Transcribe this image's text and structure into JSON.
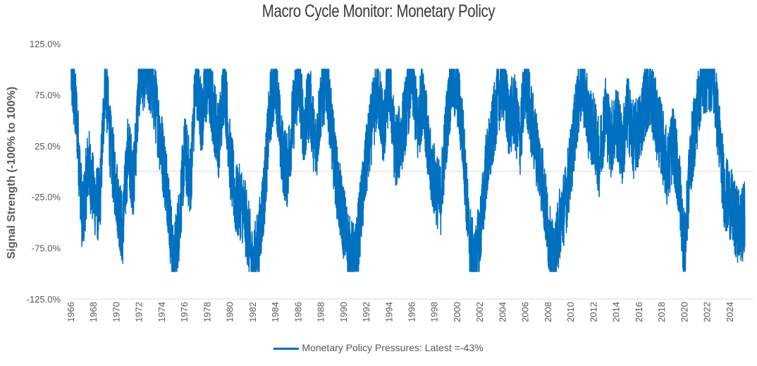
{
  "chart_data": {
    "type": "line",
    "title": "Macro Cycle Monitor: Monetary Policy",
    "xlabel": "",
    "ylabel": "Signal Strength (-100% to 100%)",
    "ylim": [
      -1.25,
      1.25
    ],
    "xlim": [
      1966,
      2026
    ],
    "yticks": [
      -1.25,
      -0.75,
      -0.25,
      0.25,
      0.75,
      1.25
    ],
    "ytick_labels": [
      "-125.0%",
      "-75.0%",
      "-25.0%",
      "25.0%",
      "75.0%",
      "125.0%"
    ],
    "xtick_labels": [
      "1966",
      "1968",
      "1970",
      "1972",
      "1974",
      "1976",
      "1978",
      "1980",
      "1982",
      "1984",
      "1986",
      "1988",
      "1990",
      "1992",
      "1994",
      "1996",
      "1998",
      "2000",
      "2002",
      "2004",
      "2006",
      "2008",
      "2010",
      "2012",
      "2014",
      "2016",
      "2018",
      "2020",
      "2022",
      "2024"
    ],
    "legend_position": "bottom",
    "grid": false,
    "series": [
      {
        "name": "Monetary Policy Pressures: Latest =-43%",
        "color": "#0070c0",
        "x": [
          1966.0,
          1966.5,
          1967.0,
          1967.5,
          1968.0,
          1968.5,
          1969.0,
          1969.5,
          1970.0,
          1970.5,
          1971.0,
          1971.5,
          1972.0,
          1972.5,
          1973.0,
          1973.5,
          1974.0,
          1974.5,
          1975.0,
          1975.5,
          1976.0,
          1976.5,
          1977.0,
          1977.5,
          1978.0,
          1978.5,
          1979.0,
          1979.5,
          1980.0,
          1980.5,
          1981.0,
          1981.5,
          1982.0,
          1982.5,
          1983.0,
          1983.5,
          1984.0,
          1984.5,
          1985.0,
          1985.5,
          1986.0,
          1986.5,
          1987.0,
          1987.5,
          1988.0,
          1988.5,
          1989.0,
          1989.5,
          1990.0,
          1990.5,
          1991.0,
          1991.5,
          1992.0,
          1992.5,
          1993.0,
          1993.5,
          1994.0,
          1994.5,
          1995.0,
          1995.5,
          1996.0,
          1996.5,
          1997.0,
          1997.5,
          1998.0,
          1998.5,
          1999.0,
          1999.5,
          2000.0,
          2000.5,
          2001.0,
          2001.5,
          2002.0,
          2002.5,
          2003.0,
          2003.5,
          2004.0,
          2004.5,
          2005.0,
          2005.5,
          2006.0,
          2006.5,
          2007.0,
          2007.5,
          2008.0,
          2008.5,
          2009.0,
          2009.5,
          2010.0,
          2010.5,
          2011.0,
          2011.5,
          2012.0,
          2012.5,
          2013.0,
          2013.5,
          2014.0,
          2014.5,
          2015.0,
          2015.5,
          2016.0,
          2016.5,
          2017.0,
          2017.5,
          2018.0,
          2018.5,
          2019.0,
          2019.5,
          2020.0,
          2020.5,
          2021.0,
          2021.5,
          2022.0,
          2022.5,
          2023.0,
          2023.5,
          2024.0,
          2024.5,
          2025.0,
          2025.3
        ],
        "values": [
          0.95,
          0.5,
          -0.5,
          0.1,
          -0.25,
          -0.35,
          0.95,
          0.2,
          -0.2,
          -0.6,
          0.2,
          -0.1,
          0.9,
          1.0,
          0.9,
          0.6,
          0.2,
          -0.2,
          -0.95,
          -0.5,
          0.2,
          -0.1,
          0.95,
          0.5,
          0.9,
          0.6,
          0.3,
          0.9,
          0.1,
          -0.3,
          -0.3,
          -0.55,
          -0.95,
          -0.7,
          -0.2,
          0.6,
          0.95,
          0.2,
          0.0,
          0.5,
          0.9,
          0.4,
          0.7,
          0.2,
          0.7,
          0.9,
          0.3,
          -0.2,
          -0.5,
          -0.8,
          -0.9,
          -0.4,
          0.1,
          0.5,
          0.8,
          0.4,
          0.9,
          0.2,
          0.3,
          0.6,
          0.95,
          0.4,
          0.8,
          0.1,
          -0.1,
          -0.3,
          0.4,
          0.9,
          0.8,
          0.3,
          -0.6,
          -0.95,
          -0.6,
          0.0,
          0.3,
          0.7,
          0.9,
          0.5,
          0.6,
          0.3,
          0.9,
          0.5,
          0.2,
          -0.1,
          -0.6,
          -0.95,
          -0.5,
          -0.3,
          0.1,
          0.6,
          0.9,
          0.5,
          0.4,
          0.1,
          0.6,
          0.3,
          0.5,
          0.2,
          0.6,
          0.3,
          0.4,
          0.7,
          0.8,
          0.5,
          0.3,
          0.0,
          0.3,
          -0.1,
          -0.8,
          0.1,
          0.5,
          0.9,
          0.95,
          0.95,
          0.4,
          -0.2,
          -0.3,
          -0.5,
          -0.55,
          -0.43
        ]
      }
    ]
  }
}
